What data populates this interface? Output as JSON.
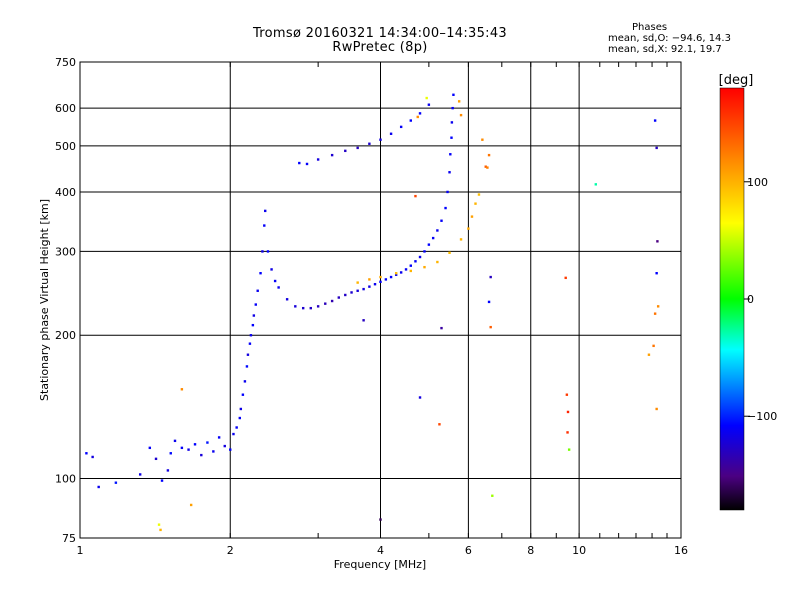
{
  "header": {
    "title_line1": "Tromsø 20160321 14:34:00–14:35:43",
    "title_line2": "RwPretec (8p)",
    "phases_title": "Phases",
    "phases_o": "mean, sd,O: −94.6, 14.3",
    "phases_x": "mean, sd,X:  92.1, 19.7"
  },
  "chart_data": {
    "type": "scatter",
    "xlabel": "Frequency [MHz]",
    "ylabel": "Stationary phase Virtual Height [km]",
    "x_scale": "log",
    "y_scale": "log",
    "xlim": [
      1,
      16
    ],
    "ylim": [
      75,
      750
    ],
    "x_ticks": [
      1,
      2,
      4,
      6,
      8,
      10,
      16
    ],
    "x_tick_labels": [
      "1",
      "2",
      "4",
      "6",
      "8",
      "10",
      "16"
    ],
    "y_ticks": [
      75,
      100,
      200,
      300,
      400,
      500,
      600,
      750
    ],
    "y_tick_labels": [
      "75",
      "100",
      "200",
      "300",
      "400",
      "500",
      "600",
      "750"
    ],
    "grid": true,
    "colorbar": {
      "label": "[deg]",
      "range": [
        -180,
        180
      ],
      "ticks": [
        100,
        0,
        -100
      ],
      "tick_labels": [
        "100",
        "0",
        "−100"
      ]
    },
    "points": [
      {
        "x": 1.03,
        "y": 113,
        "phase": -110
      },
      {
        "x": 1.06,
        "y": 111,
        "phase": -120
      },
      {
        "x": 1.09,
        "y": 96,
        "phase": -115
      },
      {
        "x": 1.18,
        "y": 98,
        "phase": -105
      },
      {
        "x": 1.32,
        "y": 102,
        "phase": -118
      },
      {
        "x": 1.38,
        "y": 116,
        "phase": -112
      },
      {
        "x": 1.42,
        "y": 110,
        "phase": -125
      },
      {
        "x": 1.46,
        "y": 99,
        "phase": -110
      },
      {
        "x": 1.5,
        "y": 104,
        "phase": -120
      },
      {
        "x": 1.52,
        "y": 113,
        "phase": -108
      },
      {
        "x": 1.55,
        "y": 120,
        "phase": -115
      },
      {
        "x": 1.6,
        "y": 116,
        "phase": -112
      },
      {
        "x": 1.65,
        "y": 115,
        "phase": -118
      },
      {
        "x": 1.7,
        "y": 118,
        "phase": -110
      },
      {
        "x": 1.75,
        "y": 112,
        "phase": -122
      },
      {
        "x": 1.8,
        "y": 119,
        "phase": -105
      },
      {
        "x": 1.85,
        "y": 114,
        "phase": -115
      },
      {
        "x": 1.9,
        "y": 122,
        "phase": -112
      },
      {
        "x": 1.95,
        "y": 117,
        "phase": -120
      },
      {
        "x": 2.0,
        "y": 115,
        "phase": -110
      },
      {
        "x": 2.03,
        "y": 124,
        "phase": -115
      },
      {
        "x": 2.06,
        "y": 128,
        "phase": -112
      },
      {
        "x": 1.44,
        "y": 80,
        "phase": 60
      },
      {
        "x": 1.45,
        "y": 78,
        "phase": 100
      },
      {
        "x": 1.6,
        "y": 154,
        "phase": 120
      },
      {
        "x": 1.67,
        "y": 88,
        "phase": 110
      },
      {
        "x": 2.09,
        "y": 134,
        "phase": -112
      },
      {
        "x": 2.1,
        "y": 140,
        "phase": -118
      },
      {
        "x": 2.12,
        "y": 150,
        "phase": -110
      },
      {
        "x": 2.14,
        "y": 160,
        "phase": -115
      },
      {
        "x": 2.16,
        "y": 172,
        "phase": -108
      },
      {
        "x": 2.17,
        "y": 182,
        "phase": -120
      },
      {
        "x": 2.19,
        "y": 192,
        "phase": -112
      },
      {
        "x": 2.2,
        "y": 200,
        "phase": -115
      },
      {
        "x": 2.22,
        "y": 210,
        "phase": -110
      },
      {
        "x": 2.23,
        "y": 220,
        "phase": -118
      },
      {
        "x": 2.25,
        "y": 232,
        "phase": -112
      },
      {
        "x": 2.27,
        "y": 248,
        "phase": -115
      },
      {
        "x": 2.3,
        "y": 270,
        "phase": -110
      },
      {
        "x": 2.32,
        "y": 300,
        "phase": -118
      },
      {
        "x": 2.34,
        "y": 340,
        "phase": -112
      },
      {
        "x": 2.35,
        "y": 365,
        "phase": -115
      },
      {
        "x": 2.38,
        "y": 300,
        "phase": -110
      },
      {
        "x": 2.42,
        "y": 275,
        "phase": -118
      },
      {
        "x": 2.46,
        "y": 260,
        "phase": -112
      },
      {
        "x": 2.5,
        "y": 252,
        "phase": -115
      },
      {
        "x": 2.6,
        "y": 238,
        "phase": -120
      },
      {
        "x": 2.7,
        "y": 230,
        "phase": -122
      },
      {
        "x": 2.8,
        "y": 228,
        "phase": -125
      },
      {
        "x": 2.9,
        "y": 228,
        "phase": -128
      },
      {
        "x": 3.0,
        "y": 230,
        "phase": -130
      },
      {
        "x": 3.1,
        "y": 233,
        "phase": -132
      },
      {
        "x": 3.2,
        "y": 236,
        "phase": -135
      },
      {
        "x": 3.3,
        "y": 240,
        "phase": -130
      },
      {
        "x": 3.4,
        "y": 243,
        "phase": -128
      },
      {
        "x": 3.5,
        "y": 246,
        "phase": -125
      },
      {
        "x": 3.6,
        "y": 248,
        "phase": -122
      },
      {
        "x": 3.7,
        "y": 250,
        "phase": -120
      },
      {
        "x": 3.8,
        "y": 253,
        "phase": -118
      },
      {
        "x": 3.9,
        "y": 256,
        "phase": -115
      },
      {
        "x": 4.0,
        "y": 259,
        "phase": -112
      },
      {
        "x": 4.1,
        "y": 262,
        "phase": -110
      },
      {
        "x": 4.2,
        "y": 265,
        "phase": -110
      },
      {
        "x": 4.3,
        "y": 268,
        "phase": -112
      },
      {
        "x": 4.4,
        "y": 271,
        "phase": -115
      },
      {
        "x": 4.5,
        "y": 275,
        "phase": -112
      },
      {
        "x": 4.6,
        "y": 280,
        "phase": -110
      },
      {
        "x": 4.7,
        "y": 286,
        "phase": -112
      },
      {
        "x": 4.8,
        "y": 292,
        "phase": -115
      },
      {
        "x": 4.9,
        "y": 300,
        "phase": -112
      },
      {
        "x": 5.0,
        "y": 310,
        "phase": -110
      },
      {
        "x": 5.1,
        "y": 320,
        "phase": -112
      },
      {
        "x": 5.2,
        "y": 332,
        "phase": -115
      },
      {
        "x": 5.3,
        "y": 348,
        "phase": -112
      },
      {
        "x": 5.4,
        "y": 370,
        "phase": -110
      },
      {
        "x": 5.45,
        "y": 400,
        "phase": -112
      },
      {
        "x": 5.5,
        "y": 440,
        "phase": -115
      },
      {
        "x": 5.52,
        "y": 480,
        "phase": -112
      },
      {
        "x": 5.55,
        "y": 520,
        "phase": -110
      },
      {
        "x": 5.56,
        "y": 560,
        "phase": -115
      },
      {
        "x": 5.58,
        "y": 600,
        "phase": -112
      },
      {
        "x": 5.6,
        "y": 640,
        "phase": -110
      },
      {
        "x": 2.75,
        "y": 460,
        "phase": -110
      },
      {
        "x": 2.85,
        "y": 458,
        "phase": -112
      },
      {
        "x": 3.0,
        "y": 468,
        "phase": -120
      },
      {
        "x": 3.2,
        "y": 478,
        "phase": -125
      },
      {
        "x": 3.4,
        "y": 488,
        "phase": -128
      },
      {
        "x": 3.6,
        "y": 495,
        "phase": -130
      },
      {
        "x": 3.8,
        "y": 505,
        "phase": -125
      },
      {
        "x": 4.0,
        "y": 515,
        "phase": -120
      },
      {
        "x": 4.2,
        "y": 530,
        "phase": -115
      },
      {
        "x": 4.4,
        "y": 548,
        "phase": -112
      },
      {
        "x": 4.6,
        "y": 565,
        "phase": -110
      },
      {
        "x": 4.8,
        "y": 585,
        "phase": -112
      },
      {
        "x": 5.0,
        "y": 610,
        "phase": -115
      },
      {
        "x": 3.6,
        "y": 258,
        "phase": 100
      },
      {
        "x": 3.8,
        "y": 262,
        "phase": 110
      },
      {
        "x": 4.0,
        "y": 265,
        "phase": 105
      },
      {
        "x": 4.3,
        "y": 270,
        "phase": 95
      },
      {
        "x": 4.6,
        "y": 273,
        "phase": 100
      },
      {
        "x": 4.9,
        "y": 278,
        "phase": 105
      },
      {
        "x": 5.2,
        "y": 285,
        "phase": 100
      },
      {
        "x": 5.5,
        "y": 298,
        "phase": 95
      },
      {
        "x": 5.8,
        "y": 318,
        "phase": 100
      },
      {
        "x": 6.0,
        "y": 335,
        "phase": 105
      },
      {
        "x": 6.1,
        "y": 355,
        "phase": 110
      },
      {
        "x": 6.2,
        "y": 378,
        "phase": 100
      },
      {
        "x": 6.3,
        "y": 395,
        "phase": 95
      },
      {
        "x": 5.75,
        "y": 620,
        "phase": 110
      },
      {
        "x": 5.8,
        "y": 580,
        "phase": 120
      },
      {
        "x": 6.4,
        "y": 515,
        "phase": 120
      },
      {
        "x": 6.6,
        "y": 478,
        "phase": 130
      },
      {
        "x": 6.5,
        "y": 452,
        "phase": 140
      },
      {
        "x": 4.7,
        "y": 392,
        "phase": 150
      },
      {
        "x": 4.75,
        "y": 575,
        "phase": 120
      },
      {
        "x": 4.95,
        "y": 630,
        "phase": 60
      },
      {
        "x": 6.55,
        "y": 450,
        "phase": 125
      },
      {
        "x": 6.65,
        "y": 208,
        "phase": 140
      },
      {
        "x": 5.25,
        "y": 130,
        "phase": 150
      },
      {
        "x": 6.7,
        "y": 92,
        "phase": 40
      },
      {
        "x": 9.4,
        "y": 264,
        "phase": 155
      },
      {
        "x": 9.45,
        "y": 150,
        "phase": 155
      },
      {
        "x": 9.5,
        "y": 138,
        "phase": 165
      },
      {
        "x": 9.48,
        "y": 125,
        "phase": 160
      },
      {
        "x": 9.55,
        "y": 115,
        "phase": 30
      },
      {
        "x": 10.8,
        "y": 415,
        "phase": -30
      },
      {
        "x": 14.2,
        "y": 565,
        "phase": -110
      },
      {
        "x": 14.3,
        "y": 495,
        "phase": -130
      },
      {
        "x": 14.35,
        "y": 315,
        "phase": -150
      },
      {
        "x": 14.3,
        "y": 270,
        "phase": -110
      },
      {
        "x": 14.4,
        "y": 230,
        "phase": 120
      },
      {
        "x": 14.2,
        "y": 222,
        "phase": 130
      },
      {
        "x": 14.1,
        "y": 190,
        "phase": 130
      },
      {
        "x": 13.8,
        "y": 182,
        "phase": 110
      },
      {
        "x": 14.3,
        "y": 140,
        "phase": 120
      },
      {
        "x": 4.0,
        "y": 82,
        "phase": -160
      },
      {
        "x": 4.8,
        "y": 148,
        "phase": -120
      },
      {
        "x": 5.3,
        "y": 207,
        "phase": -140
      },
      {
        "x": 6.6,
        "y": 235,
        "phase": -110
      },
      {
        "x": 6.65,
        "y": 265,
        "phase": -130
      },
      {
        "x": 3.7,
        "y": 215,
        "phase": -130
      }
    ]
  }
}
